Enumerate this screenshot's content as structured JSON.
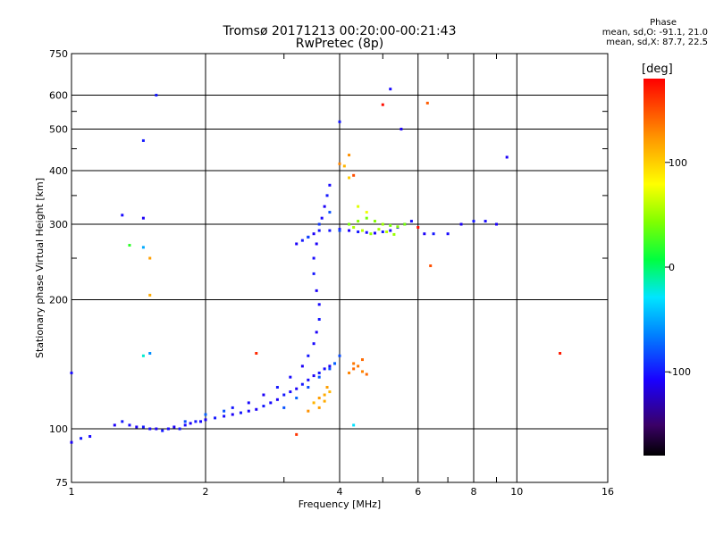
{
  "header": {
    "title_line1": "Tromsø 20171213 00:20:00-00:21:43",
    "title_line2": "RwPretec (8p)"
  },
  "phase_stats": {
    "heading": "Phase",
    "line_o": "mean, sd,O: -91.1, 21.0",
    "line_x": "mean, sd,X: 87.7, 22.5"
  },
  "colorbar": {
    "unit": "[deg]",
    "ticks": [
      "100",
      "0",
      "-100"
    ],
    "tick_values": [
      100,
      0,
      -100
    ],
    "range": [
      -180,
      180
    ]
  },
  "chart_data": {
    "type": "scatter",
    "title": "Tromsø 20171213 00:20:00-00:21:43",
    "subtitle": "RwPretec (8p)",
    "xlabel": "Frequency [MHz]",
    "ylabel": "Stationary phase Virtual Height [km]",
    "x_scale": "log",
    "y_scale": "log",
    "xlim": [
      1,
      16
    ],
    "ylim": [
      75,
      750
    ],
    "x_ticks": [
      1,
      2,
      4,
      6,
      8,
      10,
      16
    ],
    "x_tick_labels": [
      "1",
      "2",
      "4",
      "6",
      "8",
      "10",
      "16"
    ],
    "y_ticks": [
      75,
      100,
      200,
      300,
      400,
      500,
      600,
      750
    ],
    "y_tick_labels": [
      "75",
      "100",
      "200",
      "300",
      "400",
      "500",
      "600",
      "750"
    ],
    "x_grid": [
      2,
      4,
      6,
      8,
      10
    ],
    "y_grid": [
      100,
      200,
      300,
      400,
      500,
      600
    ],
    "x_minor": [
      3,
      5,
      7,
      9
    ],
    "y_minor": [
      250,
      350,
      450,
      550
    ],
    "colorscale": "rainbow (violet -180 to red +180 deg)",
    "series": [
      {
        "points": [
          [
            1.0,
            93,
            -110
          ],
          [
            1.05,
            95,
            -100
          ],
          [
            1.1,
            96,
            -105
          ],
          [
            1.25,
            102,
            -110
          ],
          [
            1.3,
            104,
            -100
          ],
          [
            1.35,
            102,
            -105
          ],
          [
            1.4,
            101,
            -110
          ],
          [
            1.45,
            101,
            -100
          ],
          [
            1.5,
            100,
            -105
          ],
          [
            1.55,
            100,
            -110
          ],
          [
            1.6,
            99,
            -100
          ],
          [
            1.65,
            100,
            -105
          ],
          [
            1.7,
            101,
            -110
          ],
          [
            1.75,
            100,
            -100
          ],
          [
            1.8,
            102,
            -105
          ],
          [
            1.85,
            103,
            -110
          ],
          [
            1.9,
            104,
            -100
          ],
          [
            1.95,
            104,
            -105
          ],
          [
            2.0,
            105,
            -110
          ],
          [
            2.1,
            106,
            -100
          ],
          [
            2.2,
            107,
            -105
          ],
          [
            2.3,
            108,
            -110
          ],
          [
            2.4,
            109,
            -100
          ],
          [
            2.5,
            110,
            -105
          ],
          [
            2.6,
            111,
            -110
          ],
          [
            2.7,
            113,
            -100
          ],
          [
            2.8,
            115,
            -105
          ],
          [
            2.9,
            117,
            -110
          ],
          [
            3.0,
            120,
            -100
          ],
          [
            3.1,
            122,
            -105
          ],
          [
            3.2,
            124,
            -110
          ],
          [
            3.3,
            127,
            -100
          ],
          [
            3.4,
            130,
            -105
          ],
          [
            3.5,
            133,
            -110
          ],
          [
            3.6,
            135,
            -100
          ],
          [
            3.7,
            138,
            -105
          ],
          [
            3.8,
            140,
            -110
          ],
          [
            3.9,
            142,
            -100
          ],
          [
            2.3,
            112,
            -100
          ],
          [
            2.5,
            115,
            -105
          ],
          [
            2.7,
            120,
            -110
          ],
          [
            2.9,
            125,
            -100
          ],
          [
            3.1,
            132,
            -105
          ],
          [
            3.3,
            140,
            -110
          ],
          [
            3.4,
            148,
            -100
          ],
          [
            3.5,
            158,
            -105
          ],
          [
            3.55,
            168,
            -110
          ],
          [
            3.6,
            180,
            -100
          ],
          [
            3.6,
            195,
            -105
          ],
          [
            3.55,
            210,
            -110
          ],
          [
            3.5,
            230,
            -100
          ],
          [
            3.5,
            250,
            -105
          ],
          [
            3.55,
            270,
            -110
          ],
          [
            3.6,
            290,
            -100
          ],
          [
            3.65,
            310,
            -105
          ],
          [
            3.7,
            330,
            -110
          ],
          [
            3.75,
            350,
            -100
          ],
          [
            3.8,
            370,
            -105
          ],
          [
            3.2,
            270,
            -110
          ],
          [
            3.3,
            275,
            -100
          ],
          [
            3.4,
            280,
            -105
          ],
          [
            3.5,
            285,
            -110
          ],
          [
            3.8,
            290,
            -100
          ],
          [
            4.0,
            292,
            -105
          ],
          [
            4.2,
            290,
            -110
          ],
          [
            4.4,
            288,
            -100
          ],
          [
            4.6,
            287,
            -105
          ],
          [
            4.8,
            286,
            -110
          ],
          [
            5.0,
            288,
            -100
          ],
          [
            5.2,
            290,
            -105
          ],
          [
            5.4,
            295,
            -110
          ],
          [
            5.6,
            300,
            -100
          ],
          [
            5.8,
            305,
            -105
          ],
          [
            6.2,
            285,
            -110
          ],
          [
            6.5,
            285,
            -100
          ],
          [
            7.0,
            285,
            -105
          ],
          [
            7.5,
            300,
            -110
          ],
          [
            8.0,
            305,
            -100
          ],
          [
            8.5,
            305,
            -105
          ],
          [
            9.0,
            300,
            -110
          ],
          [
            9.5,
            430,
            -110
          ],
          [
            5.2,
            620,
            -105
          ],
          [
            5.5,
            500,
            -110
          ],
          [
            4.0,
            520,
            -100
          ],
          [
            1.45,
            470,
            -100
          ],
          [
            1.3,
            315,
            -105
          ],
          [
            1.45,
            310,
            -110
          ],
          [
            1.0,
            135,
            -105
          ],
          [
            1.55,
            600,
            -100
          ]
        ]
      },
      {
        "points": [
          [
            3.4,
            280,
            -85
          ],
          [
            3.6,
            300,
            -90
          ],
          [
            3.8,
            320,
            -80
          ],
          [
            4.0,
            290,
            -85
          ],
          [
            3.0,
            112,
            -80
          ],
          [
            3.2,
            118,
            -75
          ],
          [
            3.4,
            125,
            -82
          ],
          [
            3.6,
            132,
            -78
          ],
          [
            3.8,
            138,
            -80
          ],
          [
            3.9,
            142,
            -75
          ],
          [
            4.0,
            148,
            -82
          ],
          [
            2.2,
            110,
            -80
          ],
          [
            2.0,
            108,
            -75
          ],
          [
            1.8,
            104,
            -82
          ],
          [
            1.5,
            150,
            -60
          ],
          [
            1.45,
            265,
            -50
          ],
          [
            4.3,
            102,
            -30
          ],
          [
            1.35,
            268,
            20
          ],
          [
            1.45,
            148,
            -20
          ]
        ]
      },
      {
        "points": [
          [
            4.2,
            300,
            40
          ],
          [
            4.4,
            305,
            45
          ],
          [
            4.6,
            310,
            40
          ],
          [
            4.8,
            305,
            45
          ],
          [
            5.0,
            300,
            50
          ],
          [
            5.2,
            298,
            40
          ],
          [
            5.4,
            296,
            45
          ],
          [
            5.6,
            300,
            40
          ],
          [
            4.3,
            295,
            55
          ],
          [
            4.5,
            290,
            60
          ],
          [
            4.7,
            285,
            50
          ],
          [
            4.9,
            292,
            55
          ],
          [
            5.1,
            288,
            60
          ],
          [
            5.3,
            284,
            50
          ],
          [
            4.1,
            410,
            110
          ],
          [
            4.2,
            385,
            100
          ],
          [
            4.4,
            330,
            70
          ],
          [
            4.6,
            320,
            75
          ],
          [
            1.5,
            250,
            120
          ],
          [
            1.5,
            205,
            115
          ]
        ]
      },
      {
        "points": [
          [
            3.5,
            115,
            110
          ],
          [
            3.6,
            118,
            120
          ],
          [
            3.7,
            120,
            115
          ],
          [
            3.8,
            122,
            110
          ],
          [
            3.6,
            112,
            120
          ],
          [
            3.7,
            116,
            115
          ],
          [
            4.2,
            135,
            130
          ],
          [
            4.3,
            138,
            140
          ],
          [
            4.4,
            140,
            135
          ],
          [
            4.5,
            136,
            130
          ],
          [
            4.6,
            134,
            140
          ],
          [
            4.3,
            142,
            135
          ],
          [
            4.5,
            145,
            140
          ],
          [
            3.4,
            110,
            125
          ],
          [
            3.75,
            125,
            120
          ],
          [
            4.0,
            415,
            130
          ],
          [
            4.2,
            435,
            125
          ],
          [
            4.3,
            390,
            150
          ],
          [
            6.3,
            575,
            145
          ],
          [
            6.4,
            240,
            150
          ]
        ]
      },
      {
        "points": [
          [
            5.0,
            570,
            175
          ],
          [
            3.2,
            97,
            160
          ],
          [
            2.6,
            150,
            165
          ],
          [
            12.5,
            150,
            170
          ],
          [
            6.0,
            295,
            175
          ]
        ]
      }
    ]
  }
}
